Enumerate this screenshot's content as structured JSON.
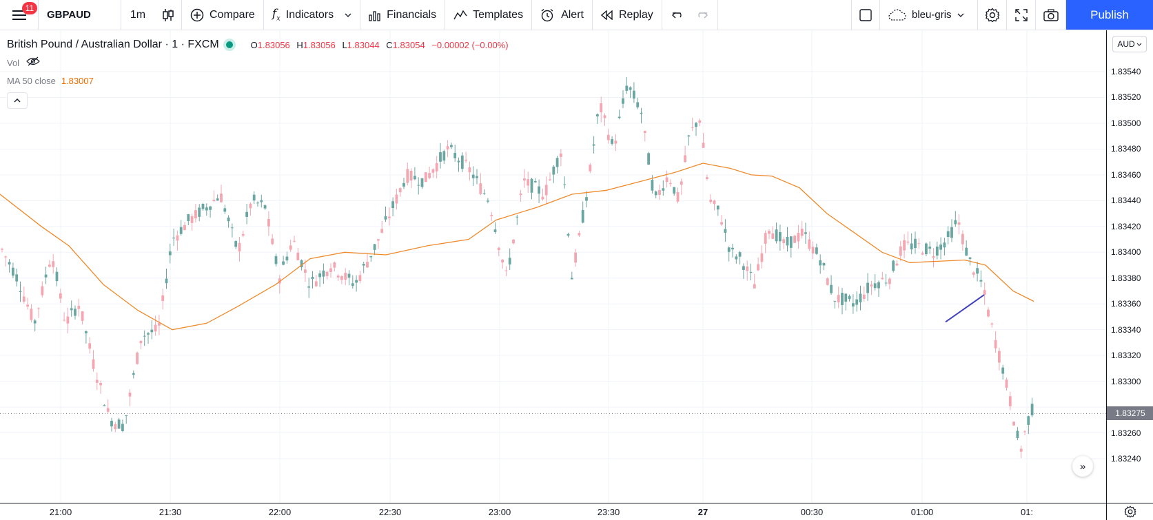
{
  "toolbar": {
    "menu_badge": "11",
    "symbol": "GBPAUD",
    "interval": "1m",
    "compare_label": "Compare",
    "indicators_label": "Indicators",
    "financials_label": "Financials",
    "templates_label": "Templates",
    "alert_label": "Alert",
    "replay_label": "Replay",
    "layout_name": "bleu-gris",
    "publish_label": "Publish"
  },
  "legend": {
    "title": "British Pound / Australian Dollar · 1 · FXCM",
    "ohlc": {
      "o_key": "O",
      "o": "1.83056",
      "h_key": "H",
      "h": "1.83056",
      "l_key": "L",
      "l": "1.83044",
      "c_key": "C",
      "c": "1.83054",
      "change": "−0.00002 (−0.00%)"
    },
    "vol_label": "Vol",
    "ma_label": "MA 50 close",
    "ma_value": "1.83007"
  },
  "price_axis": {
    "currency": "AUD",
    "last_price": "1.83275",
    "labels": [
      "1.83540",
      "1.83520",
      "1.83500",
      "1.83480",
      "1.83460",
      "1.83440",
      "1.83420",
      "1.83400",
      "1.83380",
      "1.83360",
      "1.83340",
      "1.83320",
      "1.83300",
      "1.83260",
      "1.83240"
    ]
  },
  "time_axis": {
    "labels": [
      "21:00",
      "21:30",
      "22:00",
      "22:30",
      "23:00",
      "23:30",
      "27",
      "00:30",
      "01:00",
      "01:"
    ]
  },
  "colors": {
    "up": "#6aa6a1",
    "down": "#f4a6b1",
    "ma": "#ef8a2a",
    "drawing": "#3f3fbf",
    "accent": "#2962ff"
  },
  "chart_data": {
    "type": "candlestick",
    "symbol": "GBPAUD",
    "interval": "1m",
    "ylim": [
      1.83235,
      1.8357
    ],
    "y_ticks": [
      1.8354,
      1.8352,
      1.835,
      1.8348,
      1.8346,
      1.8344,
      1.8342,
      1.834,
      1.8338,
      1.8336,
      1.8334,
      1.8332,
      1.833,
      1.8328,
      1.8326,
      1.8324
    ],
    "x_ticks": [
      "21:00",
      "21:30",
      "22:00",
      "22:30",
      "23:00",
      "23:30",
      "27",
      "00:30",
      "01:00",
      "01:"
    ],
    "last_price": 1.83275,
    "ma50_path": [
      [
        0,
        1.83445
      ],
      [
        60,
        1.8342
      ],
      [
        100,
        1.83405
      ],
      [
        150,
        1.83375
      ],
      [
        200,
        1.83355
      ],
      [
        250,
        1.8334
      ],
      [
        300,
        1.83345
      ],
      [
        345,
        1.83358
      ],
      [
        400,
        1.83375
      ],
      [
        450,
        1.83395
      ],
      [
        500,
        1.834
      ],
      [
        560,
        1.83398
      ],
      [
        620,
        1.83405
      ],
      [
        680,
        1.8341
      ],
      [
        720,
        1.83425
      ],
      [
        780,
        1.83435
      ],
      [
        830,
        1.83445
      ],
      [
        880,
        1.83448
      ],
      [
        930,
        1.83455
      ],
      [
        980,
        1.83462
      ],
      [
        1020,
        1.83469
      ],
      [
        1060,
        1.83465
      ],
      [
        1090,
        1.8346
      ],
      [
        1120,
        1.83459
      ],
      [
        1160,
        1.8345
      ],
      [
        1200,
        1.8343
      ],
      [
        1240,
        1.83415
      ],
      [
        1280,
        1.834
      ],
      [
        1320,
        1.83392
      ],
      [
        1360,
        1.83393
      ],
      [
        1400,
        1.83394
      ],
      [
        1430,
        1.8339
      ],
      [
        1470,
        1.8337
      ],
      [
        1500,
        1.83362
      ]
    ]
  }
}
